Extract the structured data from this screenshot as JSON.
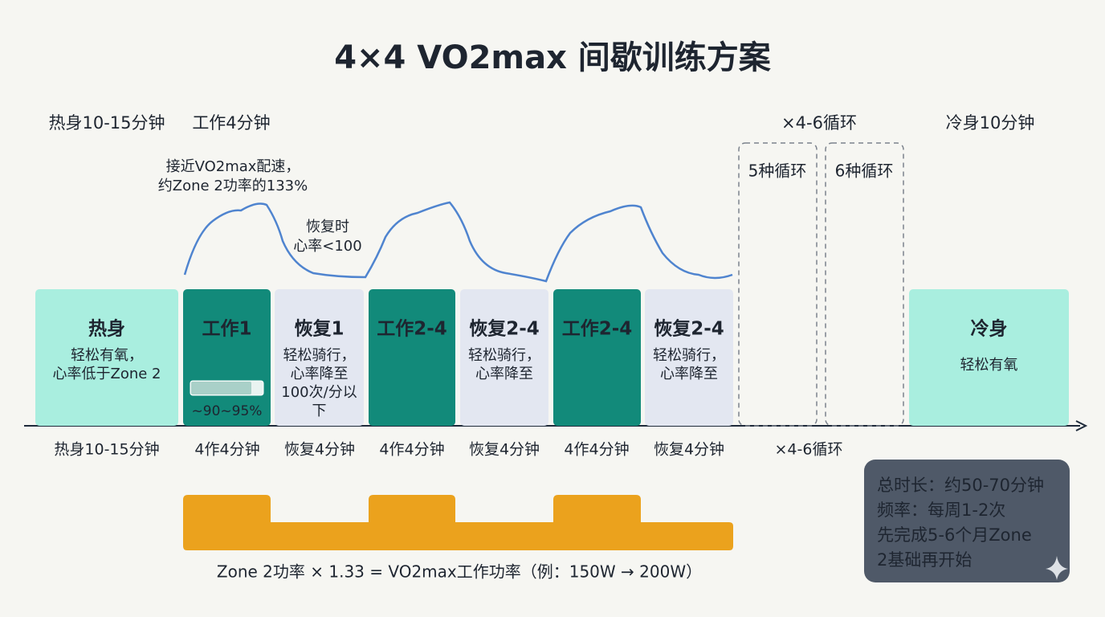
{
  "title": "4×4 VO2max 间歇训练方案",
  "top_labels": [
    "热身10-15分钟",
    "工作4分钟",
    "×4-6循环",
    "冷身10分钟"
  ],
  "annotations": [
    [
      "接近VO2max配速，",
      "约Zone 2功率的133%"
    ],
    [
      "恢复时",
      "心率<100"
    ]
  ],
  "blocks": [
    {
      "title": "热身",
      "lines": [
        "轻松有氧，",
        "心率低于Zone 2"
      ]
    },
    {
      "title": "工作1",
      "lines": [],
      "badge": "~90~95%"
    },
    {
      "title": "恢复1",
      "lines": [
        "轻松骑行，",
        "心率降至",
        "100次/分以",
        "下"
      ]
    },
    {
      "title": "工作2-4",
      "lines": []
    },
    {
      "title": "恢复2-4",
      "lines": [
        "轻松骑行，",
        "心率降至"
      ]
    },
    {
      "title": "工作2-4",
      "lines": []
    },
    {
      "title": "恢复2-4",
      "lines": [
        "轻松骑行，",
        "心率降至"
      ]
    },
    {
      "title": "冷身",
      "lines": [
        "轻松有氧"
      ]
    }
  ],
  "loops": [
    "5种循环",
    "6种循环"
  ],
  "bottom_labels": [
    "热身10-15分钟",
    "4作4分钟",
    "恢复4分钟",
    "4作4分钟",
    "恢复4分钟",
    "4作4分钟",
    "恢复4分钟",
    "×4-6循环"
  ],
  "formula": "Zone 2功率 × 1.33 = VO2max工作功率（例：150W → 200W）",
  "summary": [
    "总时长：约50-70分钟",
    "频率：每周1-2次",
    "先完成5-6个月Zone",
    "2基础再开始"
  ]
}
